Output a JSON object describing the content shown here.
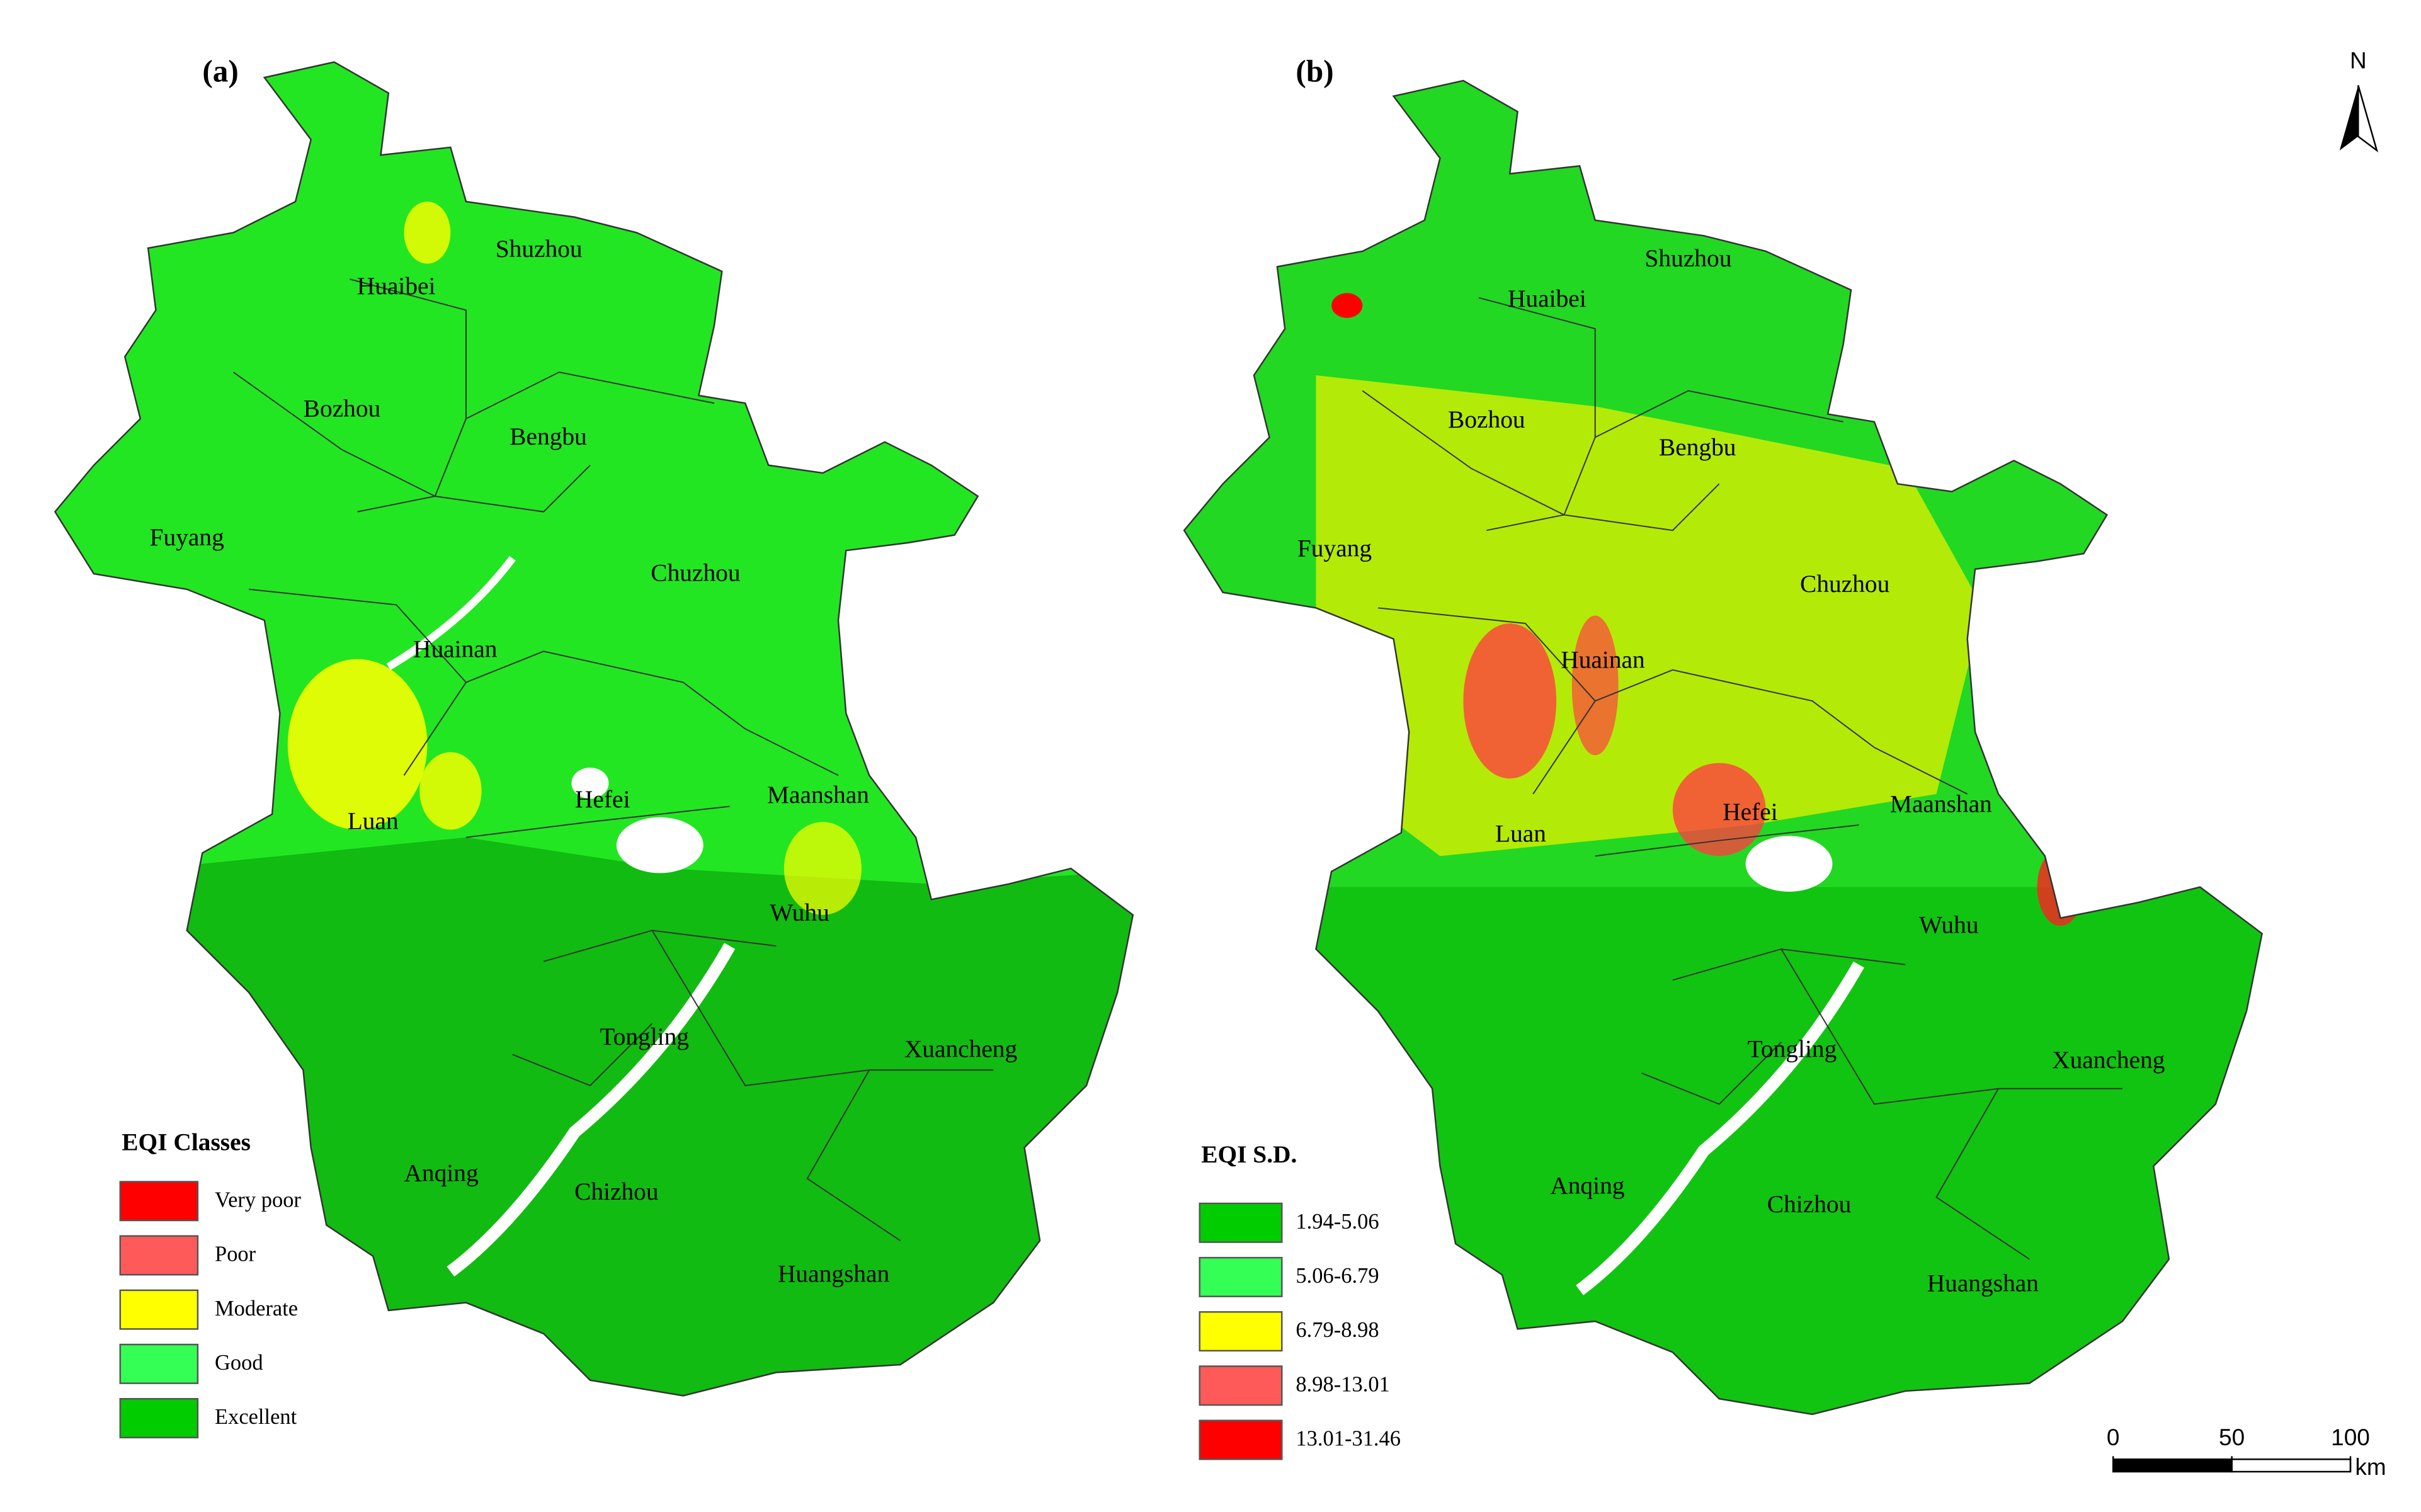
{
  "panels": [
    {
      "label": "(a)",
      "cities": [
        "Shuzhou",
        "Huaibei",
        "Bozhou",
        "Bengbu",
        "Fuyang",
        "Chuzhou",
        "Huainan",
        "Hefei",
        "Maanshan",
        "Luan",
        "Wuhu",
        "Tongling",
        "Xuancheng",
        "Anqing",
        "Chizhou",
        "Huangshan"
      ],
      "legend": {
        "title": "EQI Classes",
        "items": [
          {
            "label": "Very poor",
            "color": "#ff0000"
          },
          {
            "label": "Poor",
            "color": "#ff5a5a"
          },
          {
            "label": "Moderate",
            "color": "#ffff00"
          },
          {
            "label": "Good",
            "color": "#33ff55"
          },
          {
            "label": "Excellent",
            "color": "#00cc00"
          }
        ]
      }
    },
    {
      "label": "(b)",
      "cities": [
        "Shuzhou",
        "Huaibei",
        "Bozhou",
        "Bengbu",
        "Fuyang",
        "Chuzhou",
        "Huainan",
        "Hefei",
        "Maanshan",
        "Luan",
        "Wuhu",
        "Tongling",
        "Xuancheng",
        "Anqing",
        "Chizhou",
        "Huangshan"
      ],
      "legend": {
        "title": "EQI S.D.",
        "items": [
          {
            "label": "1.94-5.06",
            "color": "#00cc00"
          },
          {
            "label": "5.06-6.79",
            "color": "#33ff55"
          },
          {
            "label": "6.79-8.98",
            "color": "#ffff00"
          },
          {
            "label": "8.98-13.01",
            "color": "#ff5a5a"
          },
          {
            "label": "13.01-31.46",
            "color": "#ff0000"
          }
        ]
      }
    }
  ],
  "north_arrow": "N",
  "scale_bar": {
    "ticks": [
      0,
      50,
      100
    ],
    "unit": "km"
  }
}
